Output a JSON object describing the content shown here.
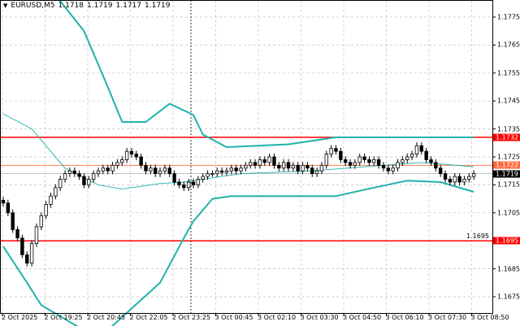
{
  "header": {
    "symbol": "EURUSD,M5",
    "open": "1.1718",
    "high": "1.1719",
    "low": "1.1717",
    "close": "1.1719"
  },
  "colors": {
    "band": "#20b2aa",
    "level": "#ff0000",
    "ask": "#ff6a3d",
    "bid": "#000000",
    "grid": "#c0c0c0"
  },
  "chart_data": {
    "type": "candlestick",
    "y_ticks": [
      "1.1775",
      "1.1765",
      "1.1755",
      "1.1745",
      "1.1735",
      "1.1725",
      "1.1715",
      "1.1705",
      "1.1695",
      "1.1685",
      "1.1675"
    ],
    "x_ticks": [
      "2 Oct 2025",
      "2 Oct 19:25",
      "2 Oct 20:45",
      "2 Oct 22:05",
      "2 Oct 23:25",
      "3 Oct 00:45",
      "3 Oct 02:10",
      "3 Oct 03:30",
      "3 Oct 04:50",
      "3 Oct 06:10",
      "3 Oct 07:30",
      "3 Oct 08:50"
    ],
    "ylim": [
      1.16705,
      1.17815
    ],
    "grid": true,
    "closes": [
      1.17085,
      1.1705,
      1.1699,
      1.1696,
      1.169,
      1.1687,
      1.1694,
      1.17,
      1.1704,
      1.1708,
      1.1711,
      1.1714,
      1.1717,
      1.1719,
      1.172,
      1.1719,
      1.1718,
      1.1715,
      1.1717,
      1.1719,
      1.172,
      1.1721,
      1.172,
      1.1722,
      1.1723,
      1.1724,
      1.1727,
      1.1726,
      1.1725,
      1.1722,
      1.172,
      1.1721,
      1.1719,
      1.172,
      1.1721,
      1.1719,
      1.1716,
      1.1715,
      1.1714,
      1.1716,
      1.1715,
      1.1717,
      1.1718,
      1.1719,
      1.1719,
      1.172,
      1.17195,
      1.172,
      1.1721,
      1.172,
      1.1721,
      1.1722,
      1.1723,
      1.1722,
      1.1724,
      1.1723,
      1.1725,
      1.1722,
      1.1721,
      1.1723,
      1.1721,
      1.1722,
      1.172,
      1.1722,
      1.1721,
      1.1719,
      1.172,
      1.1722,
      1.1726,
      1.1728,
      1.1727,
      1.1724,
      1.1723,
      1.1722,
      1.1723,
      1.1725,
      1.1724,
      1.1723,
      1.1724,
      1.1722,
      1.1721,
      1.172,
      1.1721,
      1.1723,
      1.1724,
      1.1725,
      1.1726,
      1.1729,
      1.1727,
      1.1724,
      1.1723,
      1.1721,
      1.1719,
      1.1717,
      1.1716,
      1.1718,
      1.1716,
      1.1717,
      1.1718,
      1.1719
    ],
    "bollinger": {
      "upper": [
        [
          0,
          1.18
        ],
        [
          10,
          1.1785
        ],
        [
          17,
          1.177
        ],
        [
          22,
          1.175
        ],
        [
          25,
          1.17375
        ],
        [
          30,
          1.17375
        ],
        [
          35,
          1.1744
        ],
        [
          40,
          1.174
        ],
        [
          42,
          1.1733
        ],
        [
          47,
          1.17285
        ],
        [
          60,
          1.17295
        ],
        [
          70,
          1.1732
        ],
        [
          85,
          1.1732
        ],
        [
          99,
          1.1732
        ]
      ],
      "middle": [
        [
          0,
          1.17404
        ],
        [
          6,
          1.1735
        ],
        [
          13,
          1.1721
        ],
        [
          20,
          1.1715
        ],
        [
          25,
          1.17135
        ],
        [
          33,
          1.17155
        ],
        [
          38,
          1.1716
        ],
        [
          50,
          1.1719
        ],
        [
          65,
          1.172
        ],
        [
          80,
          1.1722
        ],
        [
          88,
          1.1723
        ],
        [
          99,
          1.17215
        ]
      ],
      "lower": [
        [
          0,
          1.1693
        ],
        [
          5,
          1.168
        ],
        [
          8,
          1.1672
        ],
        [
          20,
          1.166
        ],
        [
          33,
          1.168
        ],
        [
          38,
          1.1696
        ],
        [
          40,
          1.1702
        ],
        [
          44,
          1.171
        ],
        [
          48,
          1.1711
        ],
        [
          70,
          1.1711
        ],
        [
          78,
          1.1714
        ],
        [
          85,
          1.17165
        ],
        [
          92,
          1.1716
        ],
        [
          99,
          1.17125
        ]
      ]
    },
    "levels": [
      {
        "price": "1.1732",
        "kind": "resistance"
      },
      {
        "price": "1.1695",
        "kind": "support"
      }
    ],
    "ask": "1.1722",
    "bid": "1.1719"
  }
}
